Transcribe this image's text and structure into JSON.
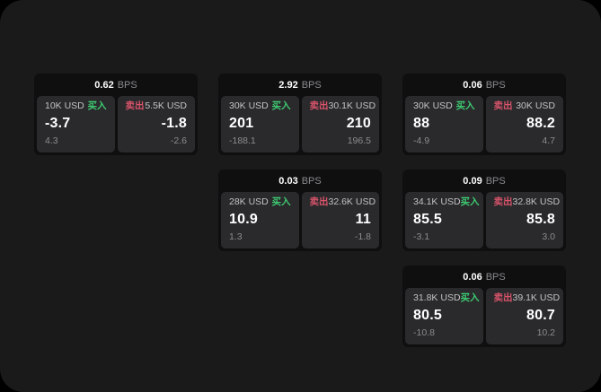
{
  "labels": {
    "bps_unit": "BPS",
    "buy": "买入",
    "sell": "卖出"
  },
  "colors": {
    "buy": "#3ecb72",
    "sell": "#d9536b",
    "page_bg": "#1a1a1b",
    "card_bg": "#0f0f10",
    "subcard_bg": "#2a2a2c"
  },
  "cards": [
    {
      "grid": {
        "row": 1,
        "col": 1
      },
      "bps": "0.62",
      "buy": {
        "size": "10K USD",
        "price": "-3.7",
        "delta": "4.3"
      },
      "sell": {
        "size": "5.5K USD",
        "price": "-1.8",
        "delta": "-2.6"
      }
    },
    {
      "grid": {
        "row": 1,
        "col": 2
      },
      "bps": "2.92",
      "buy": {
        "size": "30K USD",
        "price": "201",
        "delta": "-188.1"
      },
      "sell": {
        "size": "30.1K USD",
        "price": "210",
        "delta": "196.5"
      }
    },
    {
      "grid": {
        "row": 1,
        "col": 3
      },
      "bps": "0.06",
      "buy": {
        "size": "30K USD",
        "price": "88",
        "delta": "-4.9"
      },
      "sell": {
        "size": "30K USD",
        "price": "88.2",
        "delta": "4.7"
      }
    },
    {
      "grid": {
        "row": 2,
        "col": 2
      },
      "bps": "0.03",
      "buy": {
        "size": "28K USD",
        "price": "10.9",
        "delta": "1.3"
      },
      "sell": {
        "size": "32.6K USD",
        "price": "11",
        "delta": "-1.8"
      }
    },
    {
      "grid": {
        "row": 2,
        "col": 3
      },
      "bps": "0.09",
      "buy": {
        "size": "34.1K USD",
        "price": "85.5",
        "delta": "-3.1"
      },
      "sell": {
        "size": "32.8K USD",
        "price": "85.8",
        "delta": "3.0"
      }
    },
    {
      "grid": {
        "row": 3,
        "col": 3
      },
      "bps": "0.06",
      "buy": {
        "size": "31.8K USD",
        "price": "80.5",
        "delta": "-10.8"
      },
      "sell": {
        "size": "39.1K USD",
        "price": "80.7",
        "delta": "10.2"
      }
    }
  ]
}
